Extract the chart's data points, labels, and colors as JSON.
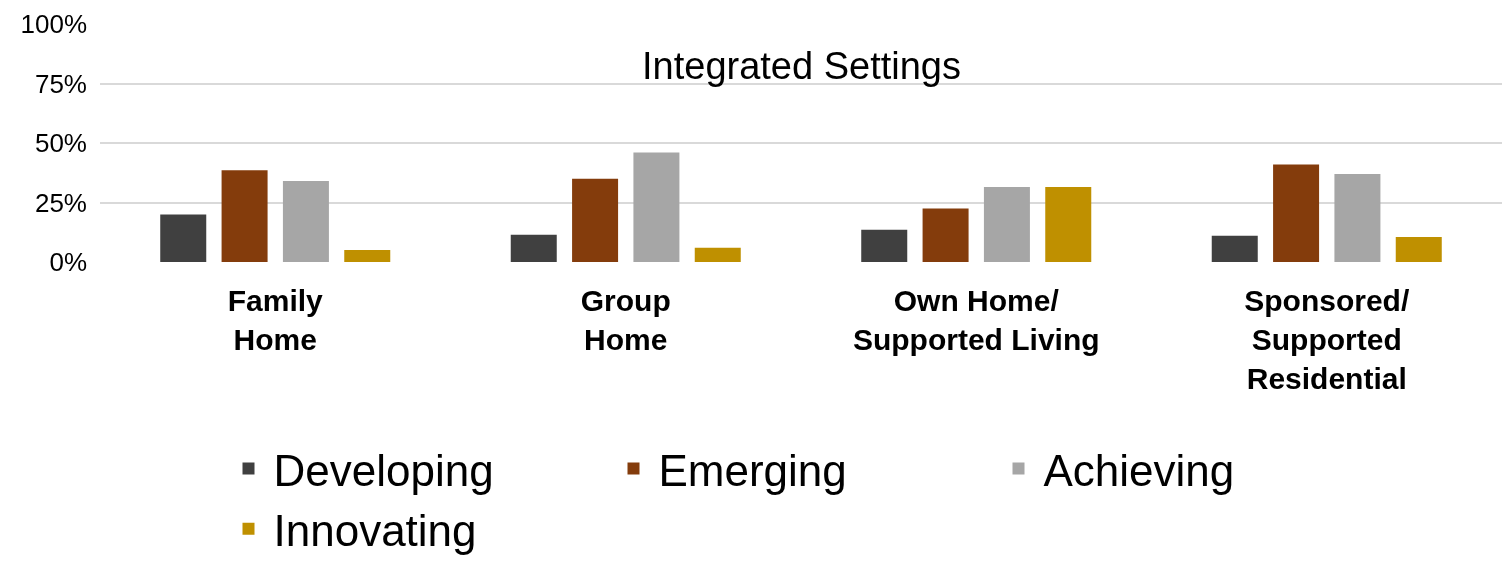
{
  "chart_data": {
    "type": "bar",
    "title": "Integrated Settings",
    "categories": [
      "Family\nHome",
      "Group\nHome",
      "Own Home/\nSupported Living",
      "Sponsored/\nSupported\nResidential"
    ],
    "series": [
      {
        "name": "Developing",
        "color": "#404040",
        "values": [
          20,
          11.5,
          13.5,
          11
        ]
      },
      {
        "name": "Emerging",
        "color": "#843c0c",
        "values": [
          38.5,
          35,
          22.5,
          41
        ]
      },
      {
        "name": "Achieving",
        "color": "#a6a6a6",
        "values": [
          34,
          46,
          31.5,
          37
        ]
      },
      {
        "name": "Innovating",
        "color": "#bf9000",
        "values": [
          5,
          6,
          31.5,
          10.5
        ]
      }
    ],
    "ylim": [
      0,
      100
    ],
    "yticks": [
      {
        "value": 0,
        "label": "0%"
      },
      {
        "value": 25,
        "label": "25%"
      },
      {
        "value": 50,
        "label": "50%"
      },
      {
        "value": 75,
        "label": "75%"
      },
      {
        "value": 100,
        "label": "100%"
      }
    ],
    "grid": "y",
    "legend": "bottom"
  }
}
